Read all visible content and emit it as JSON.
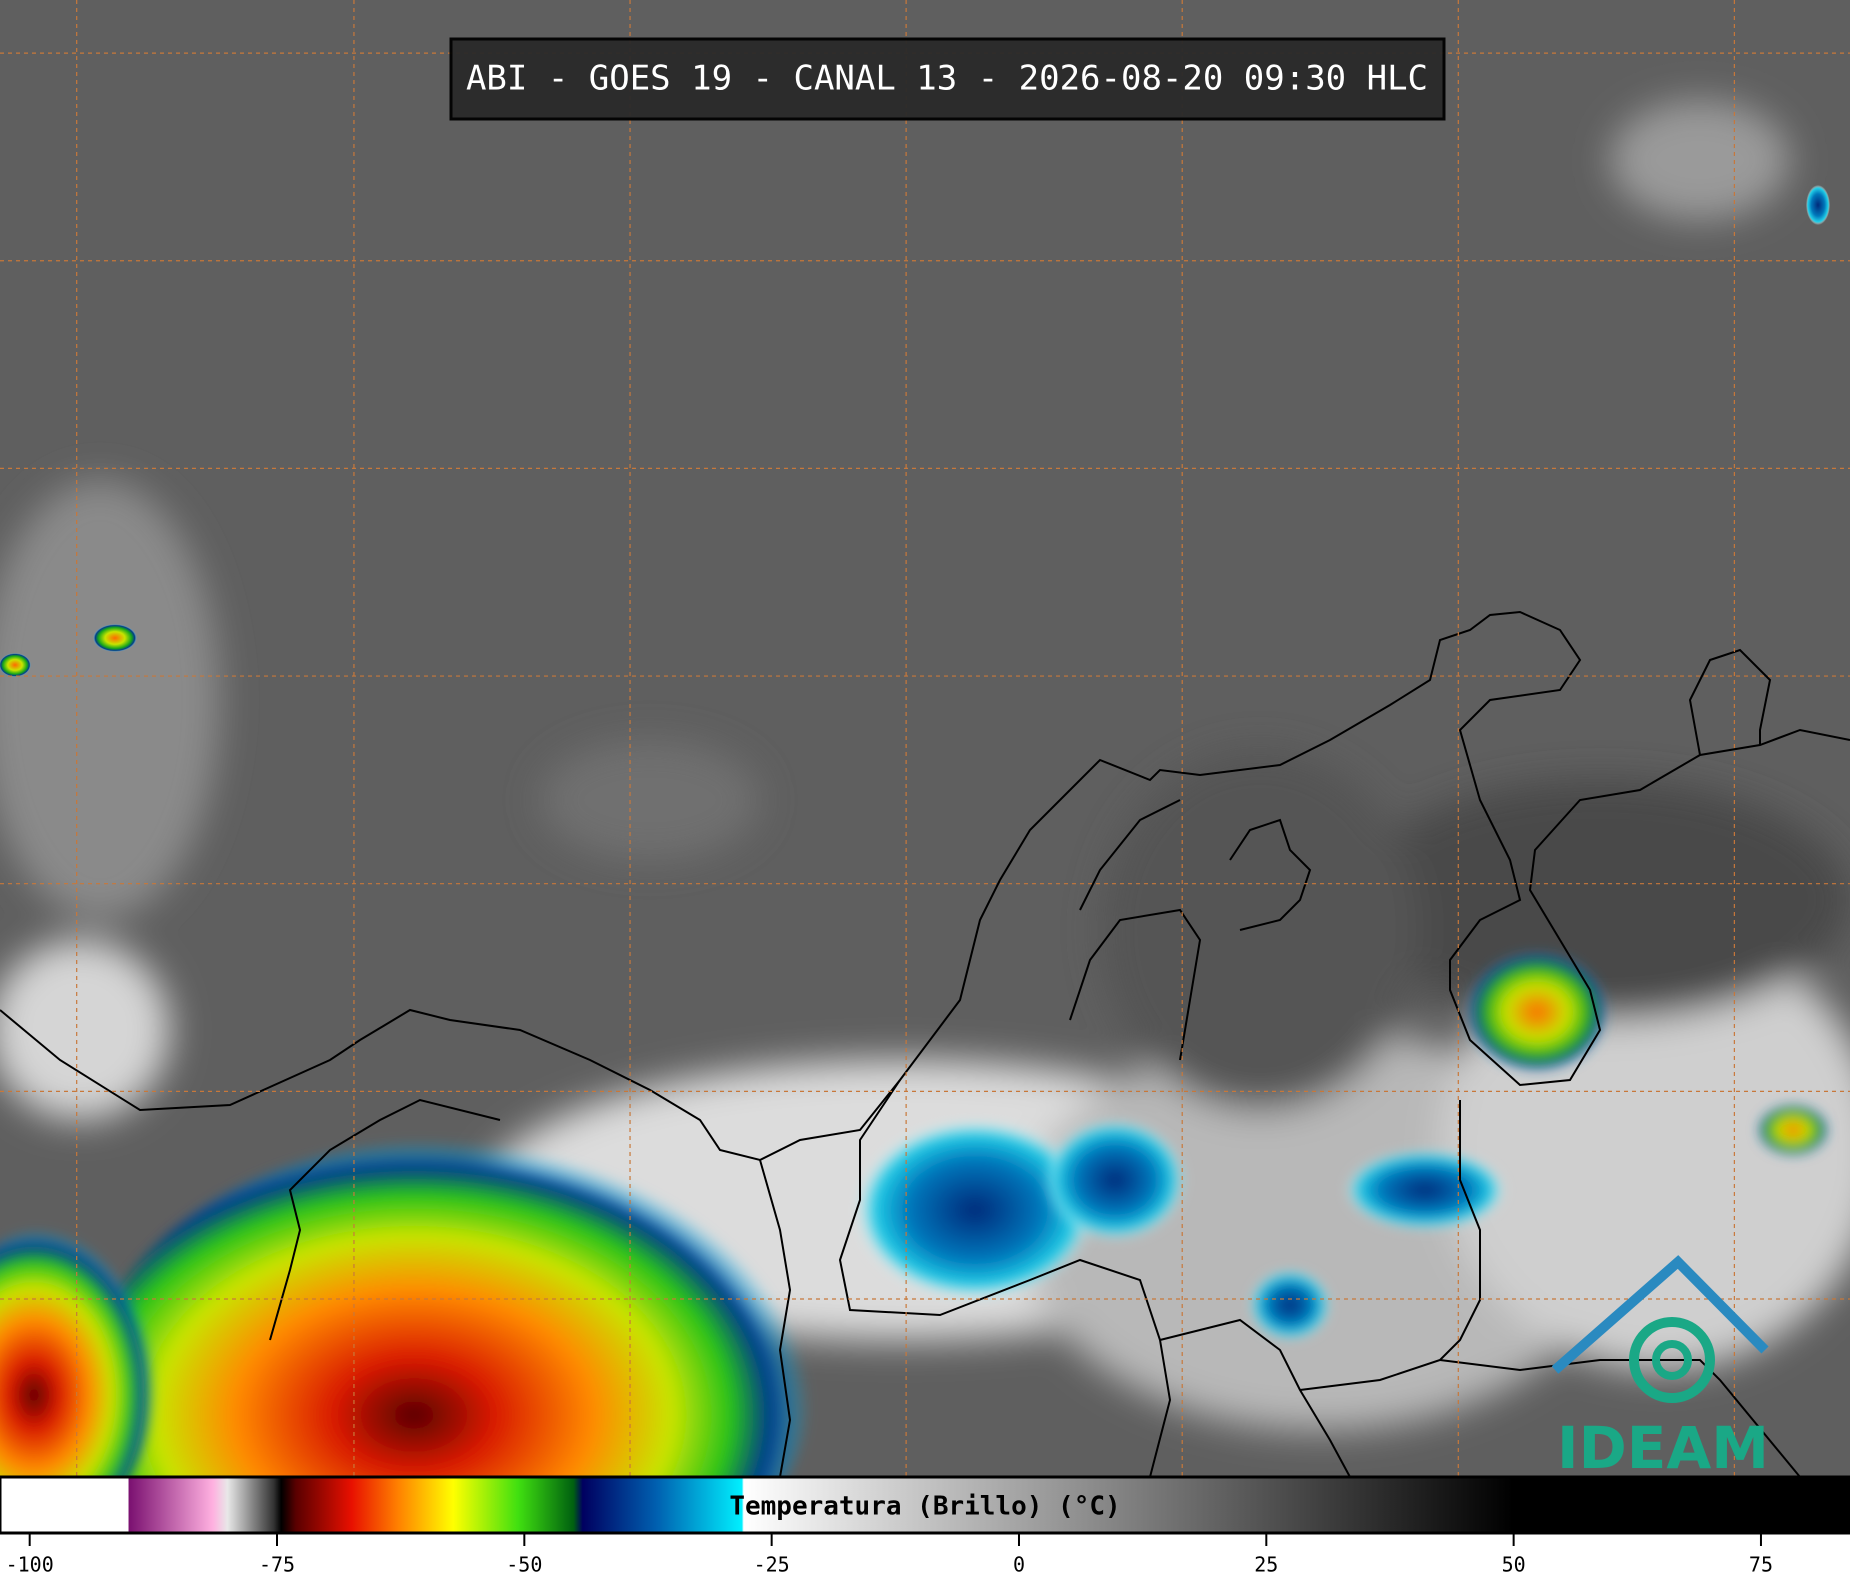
{
  "header": {
    "title": "ABI - GOES 19 - CANAL 13 - 2026-08-20 09:30 HLC"
  },
  "colorbar": {
    "label": "Temperatura (Brillo) (°C)",
    "xlim": [
      -103,
      84
    ],
    "xticks": [
      -100,
      -75,
      -50,
      -25,
      0,
      25,
      50,
      75
    ]
  },
  "logo": {
    "text": "IDEAM"
  }
}
